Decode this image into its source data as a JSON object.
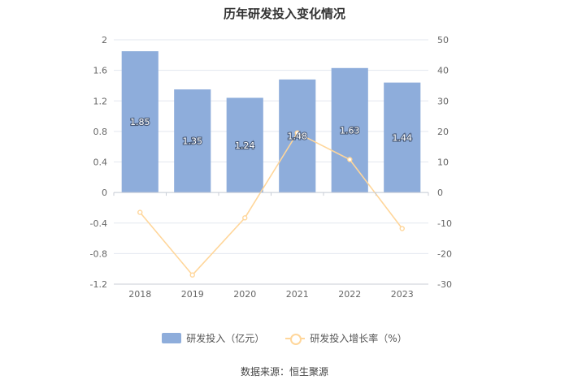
{
  "title": "历年研发投入变化情况",
  "source": "数据来源：恒生聚源",
  "chart_data": {
    "type": "bar",
    "title": "历年研发投入变化情况",
    "categories": [
      "2018",
      "2019",
      "2020",
      "2021",
      "2022",
      "2023"
    ],
    "series": [
      {
        "name": "研发投入（亿元）",
        "type": "bar",
        "axis": "left",
        "values": [
          1.85,
          1.35,
          1.24,
          1.48,
          1.63,
          1.44
        ],
        "labels": [
          "1.85",
          "1.35",
          "1.24",
          "1.48",
          "1.63",
          "1.44"
        ],
        "color": "#8eaddb"
      },
      {
        "name": "研发投入增长率（%）",
        "type": "line",
        "axis": "right",
        "values": [
          -6.5,
          -27.0,
          -8.3,
          19.5,
          10.8,
          -11.8
        ],
        "color": "#ffd69a"
      }
    ],
    "y_left": {
      "min": -1.2,
      "max": 2,
      "ticks": [
        "2",
        "1.6",
        "1.2",
        "0.8",
        "0.4",
        "0",
        "-0.4",
        "-0.8",
        "-1.2"
      ]
    },
    "y_right": {
      "min": -30,
      "max": 50,
      "ticks": [
        "50",
        "40",
        "30",
        "20",
        "10",
        "0",
        "-10",
        "-20",
        "-30"
      ]
    },
    "grid": true,
    "legend": "bottom"
  }
}
